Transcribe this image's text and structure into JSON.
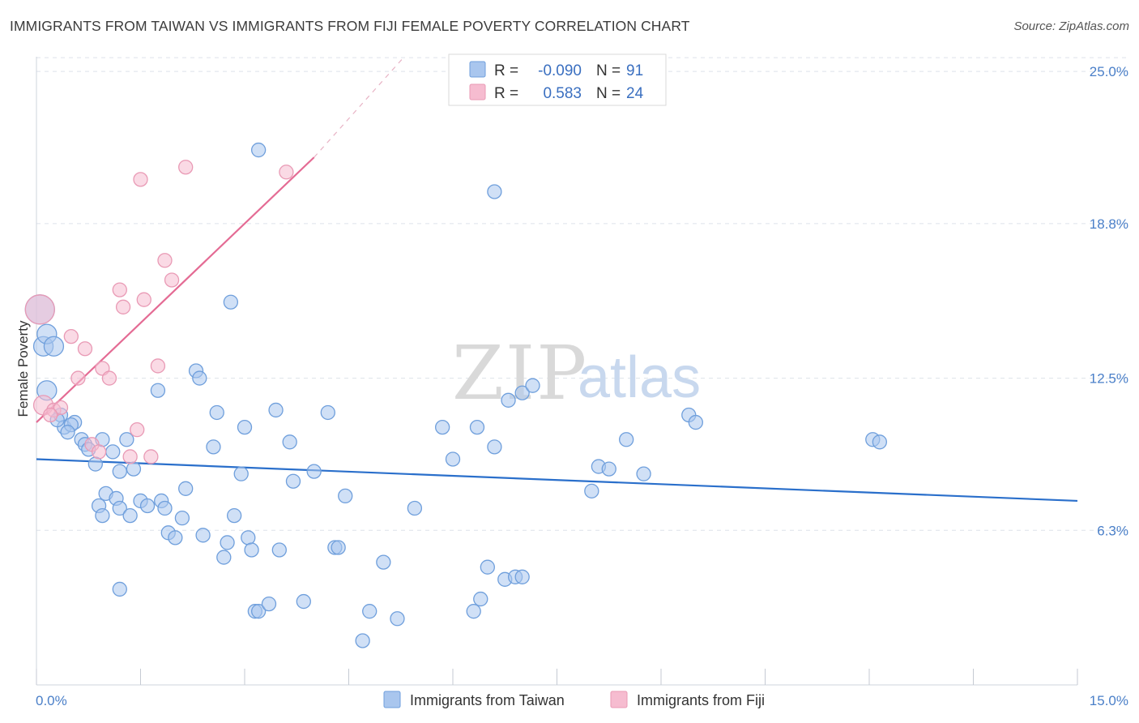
{
  "title": "IMMIGRANTS FROM TAIWAN VS IMMIGRANTS FROM FIJI FEMALE POVERTY CORRELATION CHART",
  "source": "Source: ZipAtlas.com",
  "colors": {
    "taiwan_fill": "#a9c6ee",
    "taiwan_stroke": "#6f9fdc",
    "taiwan_line": "#2a6fcb",
    "fiji_fill": "#f6bcd0",
    "fiji_stroke": "#e99ab5",
    "fiji_line": "#e46b94",
    "grid": "#dde2ea",
    "axis_text": "#4a7fc8"
  },
  "chart_data": {
    "type": "scatter",
    "xlabel": "",
    "ylabel": "Female Poverty",
    "xlim": [
      0,
      15
    ],
    "ylim": [
      0,
      25.6
    ],
    "x_tick_labels": [
      "0.0%",
      "15.0%"
    ],
    "y_ticks": [
      6.3,
      12.5,
      18.8,
      25.0
    ],
    "y_tick_labels": [
      "6.3%",
      "12.5%",
      "18.8%",
      "25.0%"
    ],
    "watermark": "ZIPatlas",
    "legend": {
      "rows": [
        {
          "r_label": "R =",
          "r_value": "-0.090",
          "n_label": "N =",
          "n_value": "91"
        },
        {
          "r_label": "R =",
          "r_value": "0.583",
          "n_label": "N =",
          "n_value": "24"
        }
      ]
    },
    "series": [
      {
        "name": "Immigrants from Taiwan",
        "trend": {
          "x": [
            0,
            15
          ],
          "y": [
            9.2,
            7.5
          ]
        },
        "points": [
          [
            0.05,
            15.3
          ],
          [
            0.1,
            13.8
          ],
          [
            0.15,
            14.3
          ],
          [
            0.25,
            13.8
          ],
          [
            0.15,
            12.0
          ],
          [
            0.35,
            11.0
          ],
          [
            0.4,
            10.5
          ],
          [
            0.55,
            10.7
          ],
          [
            0.5,
            10.6
          ],
          [
            0.3,
            10.8
          ],
          [
            0.45,
            10.3
          ],
          [
            0.65,
            10.0
          ],
          [
            0.7,
            9.8
          ],
          [
            0.75,
            9.6
          ],
          [
            0.85,
            9.0
          ],
          [
            0.95,
            10.0
          ],
          [
            1.1,
            9.5
          ],
          [
            1.2,
            8.7
          ],
          [
            1.4,
            8.8
          ],
          [
            1.3,
            10.0
          ],
          [
            1.0,
            7.8
          ],
          [
            0.9,
            7.3
          ],
          [
            0.95,
            6.9
          ],
          [
            1.15,
            7.6
          ],
          [
            1.2,
            7.2
          ],
          [
            1.35,
            6.9
          ],
          [
            1.5,
            7.5
          ],
          [
            1.6,
            7.3
          ],
          [
            1.8,
            7.5
          ],
          [
            1.85,
            7.2
          ],
          [
            1.9,
            6.2
          ],
          [
            2.0,
            6.0
          ],
          [
            2.1,
            6.8
          ],
          [
            2.15,
            8.0
          ],
          [
            2.4,
            6.1
          ],
          [
            2.55,
            9.7
          ],
          [
            2.6,
            11.1
          ],
          [
            2.7,
            5.2
          ],
          [
            2.75,
            5.8
          ],
          [
            2.85,
            6.9
          ],
          [
            2.95,
            8.6
          ],
          [
            3.0,
            10.5
          ],
          [
            3.05,
            6.0
          ],
          [
            3.1,
            5.5
          ],
          [
            3.15,
            3.0
          ],
          [
            3.2,
            3.0
          ],
          [
            3.35,
            3.3
          ],
          [
            3.45,
            11.2
          ],
          [
            3.5,
            5.5
          ],
          [
            3.65,
            9.9
          ],
          [
            3.7,
            8.3
          ],
          [
            3.85,
            3.4
          ],
          [
            4.0,
            8.7
          ],
          [
            4.2,
            11.1
          ],
          [
            4.3,
            5.6
          ],
          [
            4.35,
            5.6
          ],
          [
            4.45,
            7.7
          ],
          [
            4.7,
            1.8
          ],
          [
            4.8,
            3.0
          ],
          [
            5.0,
            5.0
          ],
          [
            5.2,
            2.7
          ],
          [
            5.45,
            7.2
          ],
          [
            5.85,
            10.5
          ],
          [
            6.0,
            9.2
          ],
          [
            6.3,
            3.0
          ],
          [
            6.35,
            10.5
          ],
          [
            6.4,
            3.5
          ],
          [
            6.5,
            4.8
          ],
          [
            6.6,
            9.7
          ],
          [
            6.75,
            4.3
          ],
          [
            6.8,
            11.6
          ],
          [
            6.9,
            4.4
          ],
          [
            7.0,
            11.9
          ],
          [
            7.15,
            12.2
          ],
          [
            7.0,
            4.4
          ],
          [
            8.0,
            7.9
          ],
          [
            8.1,
            8.9
          ],
          [
            8.25,
            8.8
          ],
          [
            8.5,
            10.0
          ],
          [
            8.75,
            8.6
          ],
          [
            9.4,
            11.0
          ],
          [
            9.5,
            10.7
          ],
          [
            12.05,
            10.0
          ],
          [
            12.15,
            9.9
          ],
          [
            1.2,
            3.9
          ],
          [
            2.3,
            12.8
          ],
          [
            2.35,
            12.5
          ],
          [
            1.75,
            12.0
          ],
          [
            3.2,
            21.8
          ],
          [
            6.6,
            20.1
          ],
          [
            2.8,
            15.6
          ]
        ],
        "sizes_large": [
          0,
          1,
          2,
          3,
          4
        ]
      },
      {
        "name": "Immigrants from Fiji",
        "trend": {
          "x": [
            0,
            4.0
          ],
          "y": [
            10.7,
            21.5
          ]
        },
        "trend_ext": {
          "x": [
            4.0,
            5.3
          ],
          "y": [
            21.5,
            25.6
          ]
        },
        "points": [
          [
            0.05,
            15.3
          ],
          [
            0.1,
            11.4
          ],
          [
            0.25,
            11.2
          ],
          [
            0.35,
            11.3
          ],
          [
            0.5,
            14.2
          ],
          [
            0.6,
            12.5
          ],
          [
            0.7,
            13.7
          ],
          [
            0.8,
            9.8
          ],
          [
            0.9,
            9.5
          ],
          [
            0.95,
            12.9
          ],
          [
            1.05,
            12.5
          ],
          [
            1.2,
            16.1
          ],
          [
            1.25,
            15.4
          ],
          [
            1.35,
            9.3
          ],
          [
            1.45,
            10.4
          ],
          [
            1.55,
            15.7
          ],
          [
            1.65,
            9.3
          ],
          [
            1.75,
            13.0
          ],
          [
            1.85,
            17.3
          ],
          [
            1.95,
            16.5
          ],
          [
            1.5,
            20.6
          ],
          [
            2.15,
            21.1
          ],
          [
            3.6,
            20.9
          ],
          [
            0.2,
            11.0
          ]
        ],
        "sizes_large": [
          0,
          1
        ]
      }
    ]
  }
}
